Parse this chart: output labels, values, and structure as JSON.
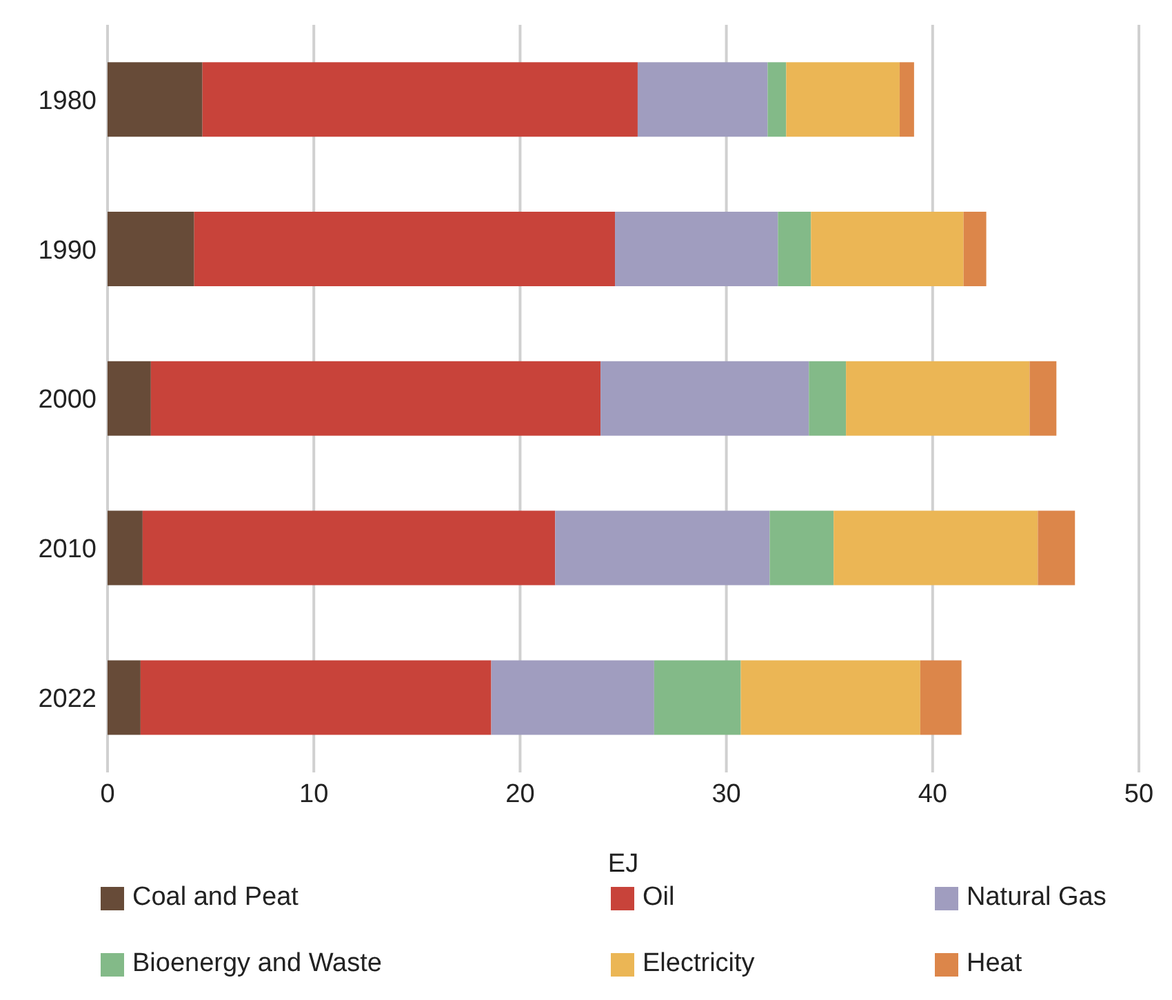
{
  "chart_data": {
    "type": "bar",
    "orientation": "horizontal",
    "stacked": true,
    "xlabel": "EJ",
    "categories": [
      "1980",
      "1990",
      "2000",
      "2010",
      "2022"
    ],
    "series": [
      {
        "name": "Coal and Peat",
        "color": "#674b38",
        "values": [
          4.6,
          4.2,
          2.1,
          1.7,
          1.6
        ]
      },
      {
        "name": "Oil",
        "color": "#c8433a",
        "values": [
          21.1,
          20.4,
          21.8,
          20.0,
          17.0
        ]
      },
      {
        "name": "Natural Gas",
        "color": "#a09dbf",
        "values": [
          6.3,
          7.9,
          10.1,
          10.4,
          7.9
        ]
      },
      {
        "name": "Bioenergy and Waste",
        "color": "#83ba88",
        "values": [
          0.9,
          1.6,
          1.8,
          3.1,
          4.2
        ]
      },
      {
        "name": "Electricity",
        "color": "#ebb655",
        "values": [
          5.5,
          7.4,
          8.9,
          9.9,
          8.7
        ]
      },
      {
        "name": "Heat",
        "color": "#dc864a",
        "values": [
          0.7,
          1.1,
          1.3,
          1.8,
          2.0
        ]
      }
    ],
    "xlim": [
      0,
      50
    ],
    "xticks": [
      0,
      10,
      20,
      30,
      40,
      50
    ],
    "grid": "x",
    "legend": "bottom"
  }
}
